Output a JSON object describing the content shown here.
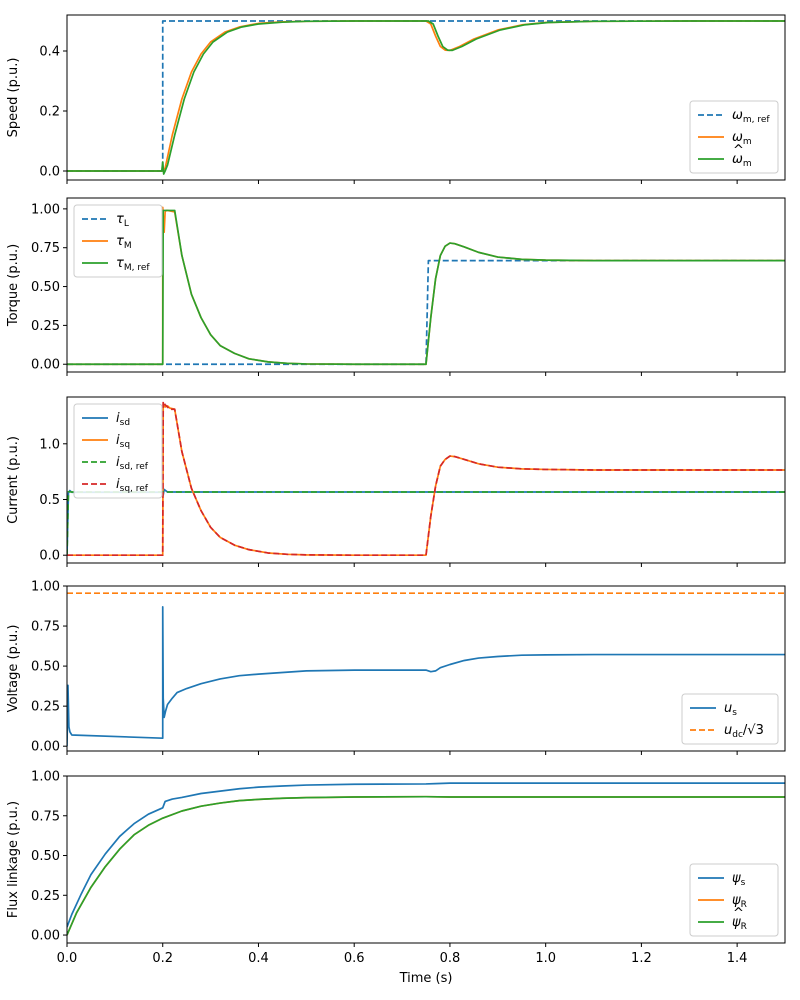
{
  "colors": {
    "blue": "#1f77b4",
    "orange": "#ff7f0e",
    "green": "#2ca02c",
    "red": "#d62728"
  },
  "chart_data": {
    "type": "line",
    "xlabel": "Time (s)",
    "xlim": [
      0,
      1.5
    ],
    "xticks": [
      "0.0",
      "0.2",
      "0.4",
      "0.6",
      "0.8",
      "1.0",
      "1.2",
      "1.4"
    ],
    "subplots": [
      {
        "ylabel": "Speed (p.u.)",
        "ylim": [
          -0.03,
          0.52
        ],
        "yticks": [
          "0.0",
          "0.2",
          "0.4"
        ],
        "legend_loc": "lower-right",
        "series": [
          {
            "base": "ω",
            "sub": "m, ref",
            "style": "dashed",
            "color": "blue",
            "x": [
              0,
              0.2,
              0.2,
              1.5
            ],
            "y": [
              0,
              0,
              0.5,
              0.5
            ]
          },
          {
            "base": "ω",
            "sub": "m",
            "style": "solid",
            "color": "orange",
            "x": [
              0,
              0.2,
              0.205,
              0.22,
              0.24,
              0.26,
              0.28,
              0.3,
              0.33,
              0.36,
              0.4,
              0.45,
              0.5,
              0.6,
              0.7,
              0.75,
              0.76,
              0.77,
              0.78,
              0.79,
              0.8,
              0.82,
              0.85,
              0.9,
              0.95,
              1.0,
              1.1,
              1.3,
              1.5
            ],
            "y": [
              0,
              0,
              0.01,
              0.12,
              0.24,
              0.33,
              0.39,
              0.43,
              0.463,
              0.48,
              0.492,
              0.497,
              0.499,
              0.5,
              0.5,
              0.5,
              0.49,
              0.45,
              0.415,
              0.403,
              0.402,
              0.415,
              0.44,
              0.47,
              0.487,
              0.495,
              0.499,
              0.5,
              0.5
            ]
          },
          {
            "base": "ω",
            "sub": "m",
            "hat": true,
            "style": "solid",
            "color": "green",
            "x": [
              0,
              0.198,
              0.2,
              0.202,
              0.205,
              0.21,
              0.225,
              0.245,
              0.265,
              0.285,
              0.305,
              0.335,
              0.365,
              0.4,
              0.45,
              0.5,
              0.6,
              0.7,
              0.755,
              0.765,
              0.775,
              0.785,
              0.795,
              0.805,
              0.825,
              0.855,
              0.905,
              0.955,
              1.005,
              1.1,
              1.3,
              1.5
            ],
            "y": [
              0,
              0,
              0.03,
              -0.01,
              0.0,
              0.02,
              0.12,
              0.24,
              0.33,
              0.39,
              0.43,
              0.463,
              0.48,
              0.49,
              0.496,
              0.499,
              0.5,
              0.5,
              0.5,
              0.49,
              0.45,
              0.415,
              0.403,
              0.402,
              0.415,
              0.44,
              0.47,
              0.487,
              0.495,
              0.499,
              0.5,
              0.5
            ]
          }
        ]
      },
      {
        "ylabel": "Torque (p.u.)",
        "ylim": [
          -0.05,
          1.07
        ],
        "yticks": [
          "0.00",
          "0.25",
          "0.50",
          "0.75",
          "1.00"
        ],
        "legend_loc": "upper-left",
        "series": [
          {
            "base": "τ",
            "sub": "L",
            "style": "dashed",
            "color": "blue",
            "x": [
              0,
              0.75,
              0.755,
              1.5
            ],
            "y": [
              0,
              0,
              0.667,
              0.667
            ]
          },
          {
            "base": "τ",
            "sub": "M",
            "style": "solid",
            "color": "orange",
            "x": [
              0,
              0.2,
              0.2,
              0.203,
              0.205,
              0.207,
              0.21,
              0.225,
              0.24,
              0.26,
              0.28,
              0.3,
              0.32,
              0.35,
              0.38,
              0.42,
              0.46,
              0.5,
              0.6,
              0.75,
              0.76,
              0.77,
              0.78,
              0.79,
              0.8,
              0.81,
              0.83,
              0.86,
              0.9,
              0.95,
              1.0,
              1.1,
              1.3,
              1.5
            ],
            "y": [
              0,
              0,
              1.01,
              0.85,
              0.98,
              0.99,
              0.99,
              0.98,
              0.7,
              0.45,
              0.3,
              0.19,
              0.12,
              0.07,
              0.035,
              0.015,
              0.006,
              0.002,
              0,
              0,
              0.3,
              0.55,
              0.7,
              0.76,
              0.78,
              0.776,
              0.755,
              0.72,
              0.69,
              0.675,
              0.67,
              0.667,
              0.667,
              0.667
            ]
          },
          {
            "base": "τ",
            "sub": "M, ref",
            "style": "solid",
            "color": "green",
            "x": [
              0,
              0.2,
              0.201,
              0.205,
              0.21,
              0.225,
              0.24,
              0.26,
              0.28,
              0.3,
              0.32,
              0.35,
              0.38,
              0.42,
              0.46,
              0.5,
              0.6,
              0.75,
              0.76,
              0.77,
              0.78,
              0.79,
              0.8,
              0.81,
              0.83,
              0.86,
              0.9,
              0.95,
              1.0,
              1.1,
              1.3,
              1.5
            ],
            "y": [
              0,
              0,
              0.99,
              0.99,
              0.99,
              0.99,
              0.7,
              0.45,
              0.3,
              0.19,
              0.12,
              0.07,
              0.035,
              0.015,
              0.006,
              0.002,
              0,
              0,
              0.3,
              0.55,
              0.7,
              0.76,
              0.78,
              0.776,
              0.755,
              0.72,
              0.69,
              0.675,
              0.67,
              0.667,
              0.667,
              0.667
            ]
          }
        ]
      },
      {
        "ylabel": "Current (p.u.)",
        "ylim": [
          -0.07,
          1.42
        ],
        "yticks": [
          "0.0",
          "0.5",
          "1.0"
        ],
        "legend_loc": "upper-left",
        "series": [
          {
            "base": "i",
            "sub": "sd",
            "style": "solid",
            "color": "blue",
            "x": [
              0,
              0.003,
              0.006,
              0.01,
              0.2,
              0.201,
              0.203,
              0.21,
              1.5
            ],
            "y": [
              0,
              0.56,
              0.58,
              0.565,
              0.565,
              0.54,
              0.59,
              0.567,
              0.567
            ]
          },
          {
            "base": "i",
            "sub": "sq",
            "style": "solid",
            "color": "orange",
            "x": [
              0,
              0.2,
              0.201,
              0.205,
              0.21,
              0.215,
              0.225,
              0.24,
              0.26,
              0.28,
              0.3,
              0.32,
              0.35,
              0.38,
              0.42,
              0.46,
              0.5,
              0.6,
              0.75,
              0.76,
              0.77,
              0.78,
              0.79,
              0.8,
              0.81,
              0.83,
              0.86,
              0.9,
              0.95,
              1.0,
              1.1,
              1.3,
              1.5
            ],
            "y": [
              0,
              0,
              1.36,
              1.33,
              1.34,
              1.32,
              1.31,
              0.93,
              0.6,
              0.4,
              0.25,
              0.16,
              0.09,
              0.05,
              0.02,
              0.008,
              0.003,
              0,
              0,
              0.35,
              0.62,
              0.8,
              0.86,
              0.89,
              0.885,
              0.86,
              0.82,
              0.79,
              0.775,
              0.77,
              0.765,
              0.765,
              0.765
            ]
          },
          {
            "base": "i",
            "sub": "sd, ref",
            "style": "dashed",
            "color": "green",
            "x": [
              0,
              0.003,
              0.01,
              1.5
            ],
            "y": [
              0,
              0.57,
              0.567,
              0.567
            ]
          },
          {
            "base": "i",
            "sub": "sq, ref",
            "style": "dashed",
            "color": "red",
            "x": [
              0,
              0.2,
              0.201,
              0.205,
              0.21,
              0.215,
              0.225,
              0.24,
              0.26,
              0.28,
              0.3,
              0.32,
              0.35,
              0.38,
              0.42,
              0.46,
              0.5,
              0.6,
              0.75,
              0.76,
              0.77,
              0.78,
              0.79,
              0.8,
              0.81,
              0.83,
              0.86,
              0.9,
              0.95,
              1.0,
              1.1,
              1.3,
              1.5
            ],
            "y": [
              0,
              0,
              1.38,
              1.35,
              1.33,
              1.31,
              1.31,
              0.93,
              0.6,
              0.4,
              0.25,
              0.16,
              0.09,
              0.05,
              0.02,
              0.008,
              0.003,
              0,
              0,
              0.35,
              0.62,
              0.8,
              0.86,
              0.89,
              0.885,
              0.86,
              0.82,
              0.79,
              0.775,
              0.77,
              0.765,
              0.765,
              0.765
            ]
          }
        ]
      },
      {
        "ylabel": "Voltage (p.u.)",
        "ylim": [
          -0.03,
          1.0
        ],
        "yticks": [
          "0.00",
          "0.25",
          "0.50",
          "0.75",
          "1.00"
        ],
        "legend_loc": "lower-right",
        "series": [
          {
            "base": "u",
            "sub": "s",
            "style": "solid",
            "color": "blue",
            "x": [
              0,
              0.002,
              0.004,
              0.006,
              0.01,
              0.2,
              0.2,
              0.201,
              0.203,
              0.206,
              0.21,
              0.22,
              0.23,
              0.25,
              0.28,
              0.32,
              0.36,
              0.4,
              0.45,
              0.5,
              0.6,
              0.75,
              0.76,
              0.77,
              0.78,
              0.8,
              0.83,
              0.86,
              0.9,
              0.95,
              1.0,
              1.1,
              1.3,
              1.5
            ],
            "y": [
              0,
              0.38,
              0.12,
              0.09,
              0.07,
              0.05,
              0.87,
              0.3,
              0.18,
              0.22,
              0.26,
              0.3,
              0.335,
              0.36,
              0.39,
              0.42,
              0.44,
              0.45,
              0.46,
              0.47,
              0.475,
              0.475,
              0.465,
              0.47,
              0.49,
              0.51,
              0.535,
              0.55,
              0.56,
              0.568,
              0.57,
              0.572,
              0.572,
              0.572
            ]
          },
          {
            "base": "u",
            "sub": "dc",
            "suffix": "/√3",
            "style": "dashed",
            "color": "orange",
            "x": [
              0,
              1.5
            ],
            "y": [
              0.955,
              0.955
            ]
          }
        ]
      },
      {
        "ylabel": "Flux linkage (p.u.)",
        "ylim": [
          -0.05,
          1.0
        ],
        "yticks": [
          "0.00",
          "0.25",
          "0.50",
          "0.75",
          "1.00"
        ],
        "legend_loc": "lower-right",
        "series": [
          {
            "base": "ψ",
            "sub": "s",
            "style": "solid",
            "color": "blue",
            "x": [
              0,
              0.01,
              0.03,
              0.05,
              0.08,
              0.11,
              0.14,
              0.17,
              0.2,
              0.205,
              0.22,
              0.24,
              0.28,
              0.32,
              0.36,
              0.4,
              0.45,
              0.5,
              0.6,
              0.75,
              0.77,
              0.8,
              1.0,
              1.5
            ],
            "y": [
              0.05,
              0.13,
              0.26,
              0.38,
              0.51,
              0.62,
              0.7,
              0.76,
              0.8,
              0.84,
              0.855,
              0.865,
              0.89,
              0.905,
              0.92,
              0.93,
              0.937,
              0.943,
              0.948,
              0.95,
              0.952,
              0.955,
              0.955,
              0.955
            ]
          },
          {
            "base": "ψ",
            "sub": "R",
            "style": "solid",
            "color": "orange",
            "x": [
              0,
              0.02,
              0.05,
              0.08,
              0.11,
              0.14,
              0.17,
              0.2,
              0.24,
              0.28,
              0.32,
              0.36,
              0.4,
              0.45,
              0.5,
              0.6,
              0.75,
              0.8,
              1.0,
              1.5
            ],
            "y": [
              0,
              0.14,
              0.3,
              0.43,
              0.54,
              0.63,
              0.69,
              0.735,
              0.78,
              0.81,
              0.83,
              0.845,
              0.853,
              0.86,
              0.864,
              0.868,
              0.87,
              0.868,
              0.868,
              0.868
            ]
          },
          {
            "base": "ψ",
            "sub": "R",
            "hat": true,
            "style": "solid",
            "color": "green",
            "x": [
              0,
              0.02,
              0.05,
              0.08,
              0.11,
              0.14,
              0.17,
              0.2,
              0.24,
              0.28,
              0.32,
              0.36,
              0.4,
              0.45,
              0.5,
              0.6,
              0.75,
              0.8,
              1.0,
              1.5
            ],
            "y": [
              0,
              0.14,
              0.3,
              0.43,
              0.54,
              0.63,
              0.69,
              0.735,
              0.78,
              0.81,
              0.83,
              0.845,
              0.853,
              0.86,
              0.864,
              0.868,
              0.87,
              0.868,
              0.868,
              0.868
            ]
          }
        ]
      }
    ]
  }
}
